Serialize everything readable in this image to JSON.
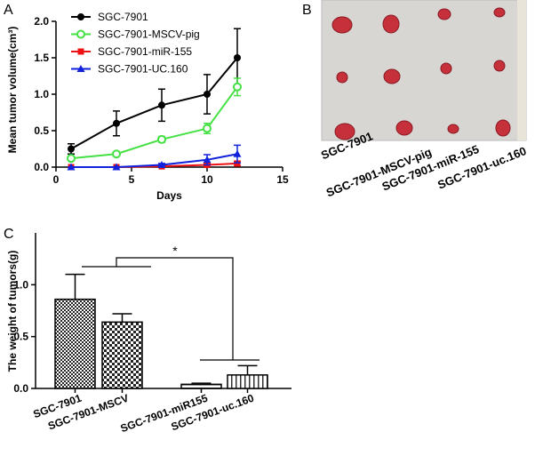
{
  "chart_data": [
    {
      "type": "line",
      "panel": "A",
      "x_label": "Days",
      "y_label": "Mean tumor volume(cm³)",
      "x": [
        1,
        4,
        7,
        10,
        12
      ],
      "xlim": [
        0,
        15
      ],
      "xticks": [
        0,
        5,
        10,
        15
      ],
      "ylim": [
        0,
        2
      ],
      "yticks": [
        {
          "value": 0,
          "label": "0.0"
        },
        0.5,
        {
          "value": 1,
          "label": "1.0"
        },
        1.5,
        {
          "value": 2,
          "label": "2.0"
        }
      ],
      "series": [
        {
          "name": "SGC-7901",
          "color": "#000000",
          "marker": "circle",
          "values": [
            0.25,
            0.6,
            0.85,
            1.0,
            1.5
          ],
          "errors": [
            0.07,
            0.17,
            0.22,
            0.27,
            0.4
          ]
        },
        {
          "name": "SGC-7901-MSCV-pig",
          "color": "#44e044",
          "marker": "open-circle",
          "values": [
            0.12,
            0.18,
            0.38,
            0.53,
            1.1
          ],
          "errors": [
            0.02,
            0.03,
            0.04,
            0.07,
            0.12
          ]
        },
        {
          "name": "SGC-7901-miR-155",
          "color": "#ee1111",
          "marker": "square",
          "values": [
            0,
            0,
            0.01,
            0.03,
            0.05
          ],
          "errors": [
            0,
            0,
            0.01,
            0.02,
            0.03
          ]
        },
        {
          "name": "SGC-7901-UC.160",
          "color": "#1122dd",
          "marker": "triangle",
          "values": [
            0,
            0,
            0.03,
            0.1,
            0.18
          ],
          "errors": [
            0,
            0,
            0.02,
            0.07,
            0.12
          ]
        }
      ]
    },
    {
      "type": "bar",
      "panel": "C",
      "y_label": "The weight of tumors(g)",
      "annotation": "*",
      "categories": [
        "SGC-7901",
        "SGC-7901-MSCV",
        "SGC-7901-miR155",
        "SGC-7901-uc.160"
      ],
      "values": [
        0.86,
        0.64,
        0.04,
        0.13
      ],
      "errors": [
        0.24,
        0.08,
        0.01,
        0.09
      ],
      "ylim": [
        0,
        1.5
      ],
      "yticks": [
        {
          "value": 0,
          "label": "0.0"
        },
        0.5,
        {
          "value": 1,
          "label": "1.0"
        }
      ]
    }
  ],
  "photo": {
    "panel": "B",
    "labels": [
      "SGC-7901",
      "SGC-7901-MSCV-pig",
      "SGC-7901-miR-155",
      "SGC-7901-uc.160"
    ]
  }
}
